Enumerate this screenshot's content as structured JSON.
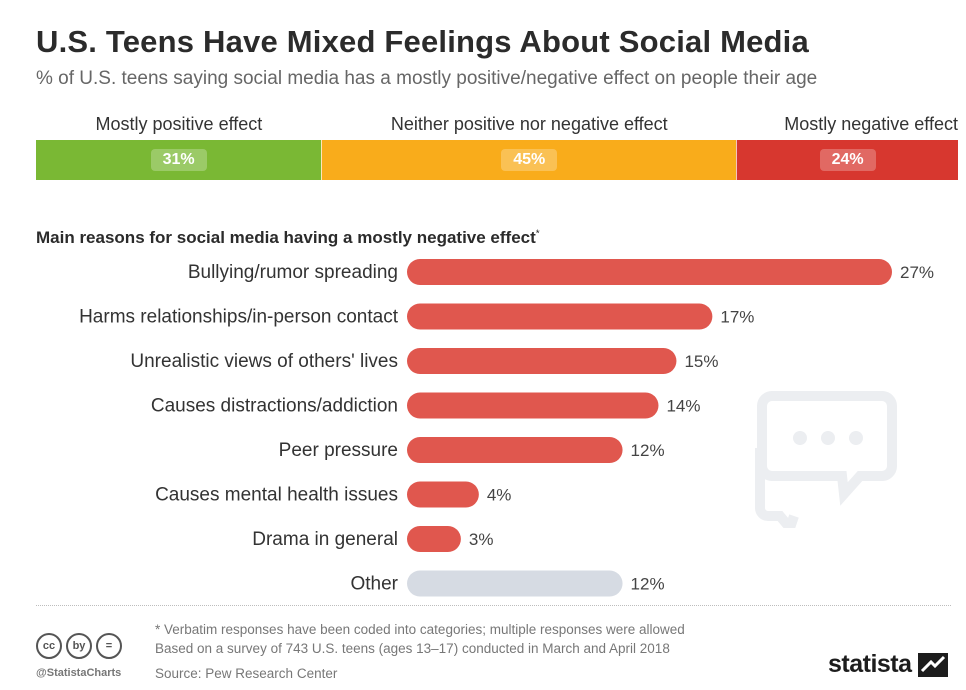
{
  "header": {
    "title": "U.S. Teens Have Mixed Feelings About Social Media",
    "subtitle": "% of U.S. teens saying social media has a mostly positive/negative effect on people their age"
  },
  "stacked": {
    "segments": [
      {
        "label": "Mostly positive effect",
        "value": 31,
        "value_label": "31%",
        "color": "#7ab834"
      },
      {
        "label": "Neither positive nor negative effect",
        "value": 45,
        "value_label": "45%",
        "color": "#f9ac1b"
      },
      {
        "label": "Mostly negative effect",
        "value": 24,
        "value_label": "24%",
        "color": "#d7372f"
      }
    ]
  },
  "section": {
    "heading": "Main reasons for social media having a mostly negative effect",
    "asterisk": "*"
  },
  "chart_data": {
    "type": "bar",
    "orientation": "horizontal",
    "categories": [
      "Bullying/rumor spreading",
      "Harms relationships/in-person contact",
      "Unrealistic views of others' lives",
      "Causes distractions/addiction",
      "Peer pressure",
      "Causes mental health issues",
      "Drama in general",
      "Other"
    ],
    "values": [
      27,
      17,
      15,
      14,
      12,
      4,
      3,
      12
    ],
    "value_labels": [
      "27%",
      "17%",
      "15%",
      "14%",
      "12%",
      "4%",
      "3%",
      "12%"
    ],
    "colors": [
      "#e0574e",
      "#e0574e",
      "#e0574e",
      "#e0574e",
      "#e0574e",
      "#e0574e",
      "#e0574e",
      "#d6dbe3"
    ],
    "xlim": [
      0,
      27
    ]
  },
  "footer": {
    "note": "* Verbatim responses have been coded into categories; multiple responses were allowed",
    "survey": "Based on a survey of 743 U.S. teens (ages 13–17) conducted in March and April 2018",
    "source": "Source: Pew Research Center",
    "handle": "@StatistaCharts",
    "brand": "statista",
    "cc_icons": [
      "cc",
      "by",
      "="
    ]
  }
}
